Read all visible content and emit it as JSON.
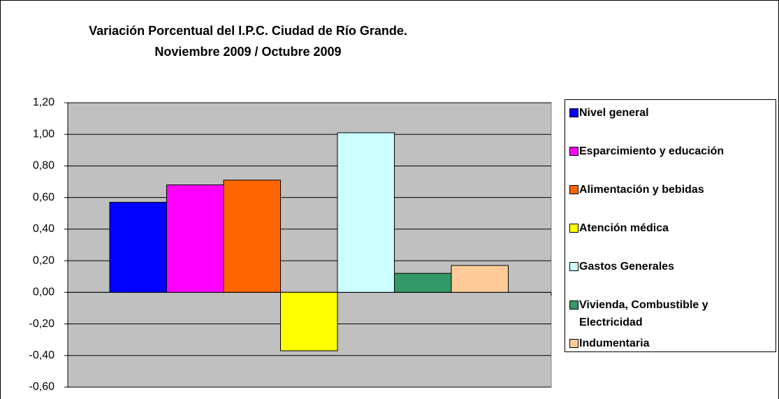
{
  "chart_data": {
    "type": "bar",
    "title": "Variación Porcentual del I.P.C. Ciudad de Río Grande.",
    "subtitle": "Noviembre 2009 / Octubre 2009",
    "ylim": [
      -0.6,
      1.2
    ],
    "yticks": [
      {
        "value": -0.6,
        "label": "-0,60"
      },
      {
        "value": -0.4,
        "label": "-0,40"
      },
      {
        "value": -0.2,
        "label": "-0,20"
      },
      {
        "value": 0,
        "label": "0,00"
      },
      {
        "value": 0.2,
        "label": "0,20"
      },
      {
        "value": 0.4,
        "label": "0,40"
      },
      {
        "value": 0.6,
        "label": "0,60"
      },
      {
        "value": 0.8,
        "label": "0,80"
      },
      {
        "value": 1.0,
        "label": "1,00"
      },
      {
        "value": 1.2,
        "label": "1,20"
      }
    ],
    "grid": true,
    "legend": "right",
    "series": [
      {
        "name": "Nivel general",
        "color": "#0000ff",
        "values": [
          0.57
        ]
      },
      {
        "name": "Esparcimiento y educación",
        "color": "#ff00ff",
        "values": [
          0.68
        ]
      },
      {
        "name": "Alimentación y bebidas",
        "color": "#ff6600",
        "values": [
          0.71
        ]
      },
      {
        "name": "Atención médica",
        "color": "#ffff00",
        "values": [
          -0.37
        ]
      },
      {
        "name": "Gastos Generales",
        "color": "#ccffff",
        "values": [
          1.01
        ]
      },
      {
        "name": "Vivienda, Combustible y Electricidad",
        "color": "#339966",
        "values": [
          0.12
        ]
      },
      {
        "name": "Indumentaria",
        "color": "#ffcc99",
        "values": [
          0.17
        ]
      }
    ]
  }
}
